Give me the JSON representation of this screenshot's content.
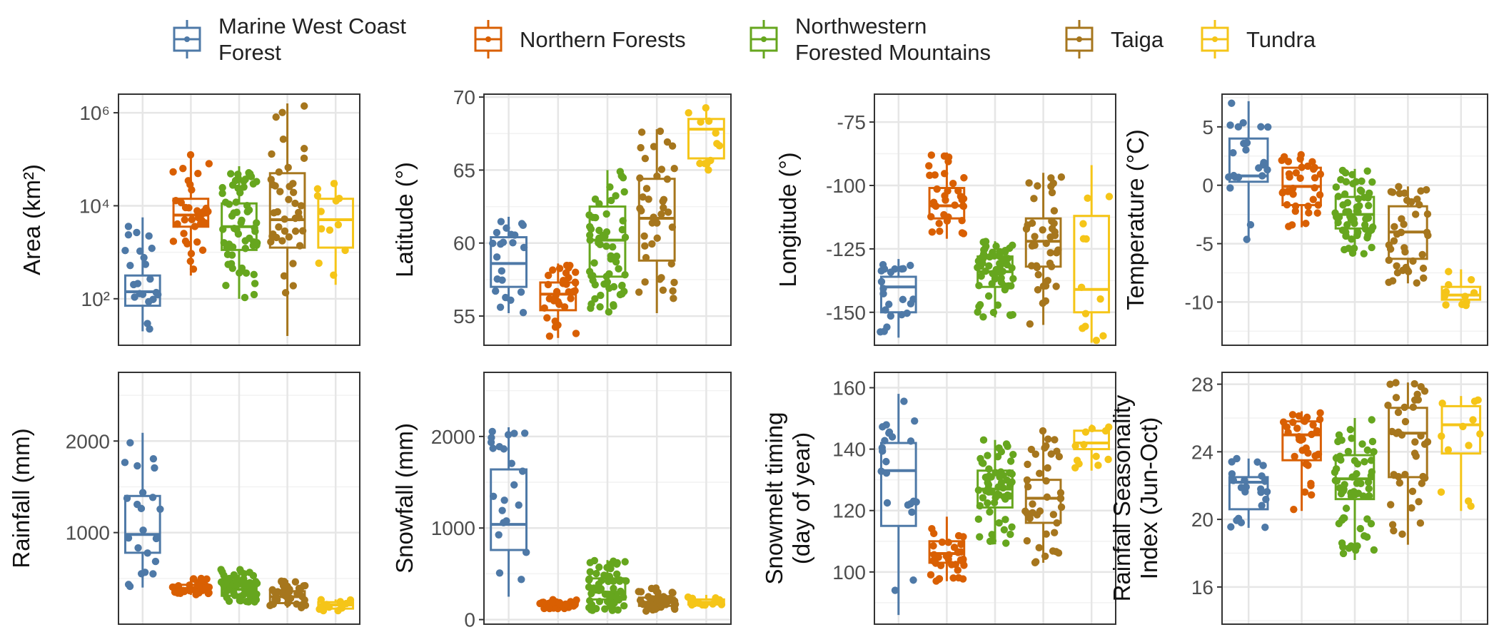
{
  "legend": {
    "items": [
      {
        "label": "Marine West Coast\nForest",
        "color": "#4e79a7"
      },
      {
        "label": "Northern Forests",
        "color": "#d95f02"
      },
      {
        "label": "Northwestern\nForested Mountains",
        "color": "#66a61e"
      },
      {
        "label": "Taiga",
        "color": "#a6761d"
      },
      {
        "label": "Tundra",
        "color": "#f5c518"
      }
    ]
  },
  "chart_data": [
    {
      "type": "box",
      "ylabel": "Area (km²)",
      "ylabel_lines": [
        "Area (km²)"
      ],
      "yscale": "log10",
      "ylim": [
        1,
        6.4
      ],
      "yticks": [
        {
          "v": 2,
          "label": "10²"
        },
        {
          "v": 4,
          "label": "10⁴"
        },
        {
          "v": 6,
          "label": "10⁶"
        }
      ],
      "boxes": [
        {
          "q1": 1.85,
          "med": 2.15,
          "q3": 2.5,
          "lo": 1.3,
          "hi": 3.75
        },
        {
          "q1": 3.55,
          "med": 3.8,
          "q3": 4.15,
          "lo": 2.5,
          "hi": 5.1
        },
        {
          "q1": 3.05,
          "med": 3.55,
          "q3": 4.05,
          "lo": 2.0,
          "hi": 4.85
        },
        {
          "q1": 3.1,
          "med": 3.7,
          "q3": 4.7,
          "lo": 1.2,
          "hi": 6.2
        },
        {
          "q1": 3.1,
          "med": 3.7,
          "q3": 4.15,
          "lo": 2.3,
          "hi": 4.55
        }
      ]
    },
    {
      "type": "box",
      "ylabel": "Latitude (°)",
      "ylabel_lines": [
        "Latitude (°)"
      ],
      "ylim": [
        53,
        70.2
      ],
      "yticks": [
        {
          "v": 55,
          "label": "55"
        },
        {
          "v": 60,
          "label": "60"
        },
        {
          "v": 65,
          "label": "65"
        },
        {
          "v": 70,
          "label": "70"
        }
      ],
      "boxes": [
        {
          "q1": 57.0,
          "med": 58.6,
          "q3": 60.4,
          "lo": 55.2,
          "hi": 61.8
        },
        {
          "q1": 55.4,
          "med": 56.5,
          "q3": 57.3,
          "lo": 53.5,
          "hi": 58.6
        },
        {
          "q1": 57.7,
          "med": 60.2,
          "q3": 62.5,
          "lo": 55.2,
          "hi": 65.0
        },
        {
          "q1": 58.8,
          "med": 61.7,
          "q3": 64.4,
          "lo": 55.2,
          "hi": 67.8
        },
        {
          "q1": 65.8,
          "med": 67.8,
          "q3": 68.5,
          "lo": 65.0,
          "hi": 69.4
        }
      ]
    },
    {
      "type": "box",
      "ylabel": "Longitude (°)",
      "ylabel_lines": [
        "Longitude (°)"
      ],
      "ylim": [
        -163,
        -64
      ],
      "yticks": [
        {
          "v": -150,
          "label": "-150"
        },
        {
          "v": -125,
          "label": "-125"
        },
        {
          "v": -100,
          "label": "-100"
        },
        {
          "v": -75,
          "label": "-75"
        }
      ],
      "boxes": [
        {
          "q1": -150,
          "med": -140,
          "q3": -136,
          "lo": -160,
          "hi": -129
        },
        {
          "q1": -113,
          "med": -108,
          "q3": -101,
          "lo": -121,
          "hi": -87
        },
        {
          "q1": -140,
          "med": -134,
          "q3": -128,
          "lo": -152,
          "hi": -122
        },
        {
          "q1": -132,
          "med": -122,
          "q3": -113,
          "lo": -155,
          "hi": -95
        },
        {
          "q1": -150,
          "med": -141,
          "q3": -112,
          "lo": -162,
          "hi": -92
        }
      ]
    },
    {
      "type": "box",
      "ylabel": "Temperature (°C)",
      "ylabel_lines": [
        "Temperature (°C)"
      ],
      "ylim": [
        -13.7,
        7.8
      ],
      "yticks": [
        {
          "v": -10,
          "label": "-10"
        },
        {
          "v": -5,
          "label": "-5"
        },
        {
          "v": 0,
          "label": "0"
        },
        {
          "v": 5,
          "label": "5"
        }
      ],
      "boxes": [
        {
          "q1": 0.3,
          "med": 0.8,
          "q3": 4.0,
          "lo": -4.7,
          "hi": 7.2
        },
        {
          "q1": -1.7,
          "med": -0.1,
          "q3": 1.5,
          "lo": -3.6,
          "hi": 2.7
        },
        {
          "q1": -3.7,
          "med": -2.5,
          "q3": -1.0,
          "lo": -5.9,
          "hi": 1.4
        },
        {
          "q1": -6.3,
          "med": -4.0,
          "q3": -1.8,
          "lo": -8.4,
          "hi": -0.1
        },
        {
          "q1": -9.8,
          "med": -9.4,
          "q3": -8.7,
          "lo": -10.3,
          "hi": -7.2
        }
      ]
    },
    {
      "type": "box",
      "ylabel": "Rainfall (mm)",
      "ylabel_lines": [
        "Rainfall (mm)"
      ],
      "ylim": [
        0,
        2750
      ],
      "yticks": [
        {
          "v": 1000,
          "label": "1000"
        },
        {
          "v": 2000,
          "label": "2000"
        }
      ],
      "boxes": [
        {
          "q1": 780,
          "med": 980,
          "q3": 1400,
          "lo": 400,
          "hi": 2090
        },
        {
          "q1": 350,
          "med": 390,
          "q3": 430,
          "lo": 320,
          "hi": 500
        },
        {
          "q1": 310,
          "med": 380,
          "q3": 450,
          "lo": 240,
          "hi": 600
        },
        {
          "q1": 230,
          "med": 300,
          "q3": 360,
          "lo": 180,
          "hi": 480
        },
        {
          "q1": 170,
          "med": 210,
          "q3": 240,
          "lo": 130,
          "hi": 270
        }
      ]
    },
    {
      "type": "box",
      "ylabel": "Snowfall (mm)",
      "ylabel_lines": [
        "Snowfall (mm)"
      ],
      "ylim": [
        -50,
        2700
      ],
      "yticks": [
        {
          "v": 0,
          "label": "0"
        },
        {
          "v": 1000,
          "label": "1000"
        },
        {
          "v": 2000,
          "label": "2000"
        }
      ],
      "boxes": [
        {
          "q1": 760,
          "med": 1040,
          "q3": 1640,
          "lo": 250,
          "hi": 2100
        },
        {
          "q1": 150,
          "med": 170,
          "q3": 190,
          "lo": 120,
          "hi": 220
        },
        {
          "q1": 220,
          "med": 300,
          "q3": 450,
          "lo": 100,
          "hi": 650
        },
        {
          "q1": 150,
          "med": 190,
          "q3": 240,
          "lo": 90,
          "hi": 350
        },
        {
          "q1": 165,
          "med": 190,
          "q3": 220,
          "lo": 150,
          "hi": 270
        }
      ]
    },
    {
      "type": "box",
      "ylabel": "Snowmelt timing (day of year)",
      "ylabel_lines": [
        "Snowmelt timing",
        "(day of year)"
      ],
      "ylim": [
        83,
        165
      ],
      "yticks": [
        {
          "v": 100,
          "label": "100"
        },
        {
          "v": 120,
          "label": "120"
        },
        {
          "v": 140,
          "label": "140"
        },
        {
          "v": 160,
          "label": "160"
        }
      ],
      "boxes": [
        {
          "q1": 115,
          "med": 133,
          "q3": 142,
          "lo": 86,
          "hi": 158
        },
        {
          "q1": 103,
          "med": 106,
          "q3": 110,
          "lo": 97,
          "hi": 118
        },
        {
          "q1": 121,
          "med": 127,
          "q3": 133,
          "lo": 109,
          "hi": 143
        },
        {
          "q1": 116,
          "med": 124,
          "q3": 130,
          "lo": 103,
          "hi": 146
        },
        {
          "q1": 140,
          "med": 142,
          "q3": 146,
          "lo": 133,
          "hi": 148
        }
      ]
    },
    {
      "type": "box",
      "ylabel": "Rainfall Seasonality Index (Jun-Oct)",
      "ylabel_lines": [
        "Rainfall Seasonality",
        "Index (Jun-Oct)"
      ],
      "ylim": [
        13.8,
        28.7
      ],
      "yticks": [
        {
          "v": 16,
          "label": "16"
        },
        {
          "v": 20,
          "label": "20"
        },
        {
          "v": 24,
          "label": "24"
        },
        {
          "v": 28,
          "label": "28"
        }
      ],
      "boxes": [
        {
          "q1": 20.6,
          "med": 22.2,
          "q3": 22.5,
          "lo": 19.5,
          "hi": 23.6
        },
        {
          "q1": 23.5,
          "med": 25.0,
          "q3": 25.8,
          "lo": 20.5,
          "hi": 26.4
        },
        {
          "q1": 21.2,
          "med": 22.4,
          "q3": 23.8,
          "lo": 17.6,
          "hi": 26.0
        },
        {
          "q1": 22.5,
          "med": 25.1,
          "q3": 26.6,
          "lo": 18.5,
          "hi": 28.1
        },
        {
          "q1": 23.9,
          "med": 25.6,
          "q3": 26.7,
          "lo": 20.5,
          "hi": 27.3
        }
      ]
    }
  ]
}
